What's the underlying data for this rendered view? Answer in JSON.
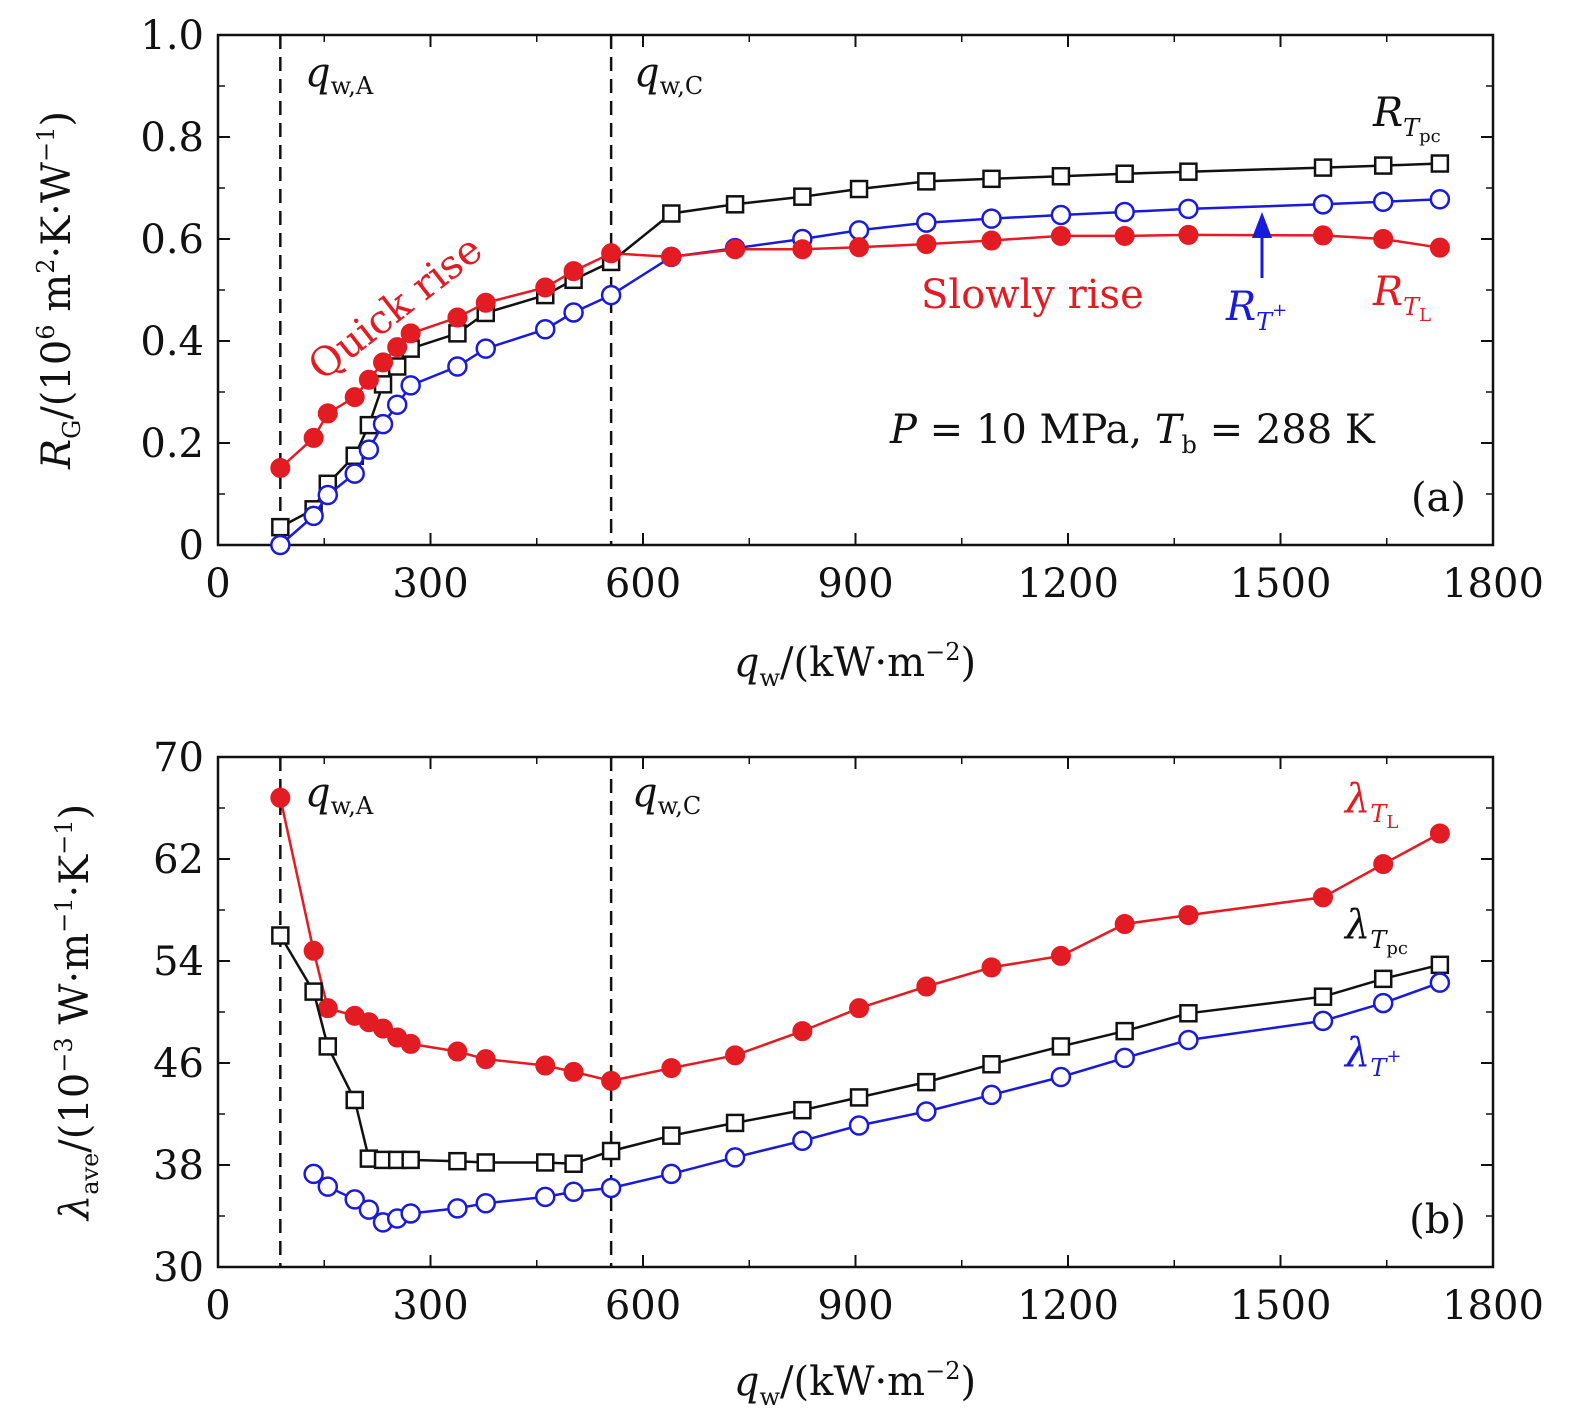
{
  "chart_data": [
    {
      "id": "a",
      "type": "line",
      "panel_label": "(a)",
      "xlim": [
        0,
        1800
      ],
      "ylim": [
        0,
        1.0
      ],
      "xticks": [
        "0",
        "300",
        "600",
        "900",
        "1200",
        "1500",
        "1800"
      ],
      "yticks": [
        "0",
        "0.2",
        "0.4",
        "0.6",
        "0.8",
        "1.0"
      ],
      "xlabel": {
        "main": "q",
        "sub": "w",
        "rest": "/(kW·m",
        "sup": "−2",
        "close": ")"
      },
      "ylabel": {
        "main": "R",
        "sub": "G",
        "rest1": "/(10",
        "sup1": "6",
        "rest2": " m",
        "sup2": "2",
        "rest3": "·K·W",
        "sup3": "−1",
        "close": ")"
      },
      "condition": {
        "p": "P",
        "p_eq": " = 10 MPa, ",
        "t": "T",
        "t_sub": "b",
        "t_eq": " = 288 K"
      },
      "vlines": [
        {
          "x": 88,
          "label": "q",
          "label_sub": "w,A"
        },
        {
          "x": 555,
          "label": "q",
          "label_sub": "w,C"
        }
      ],
      "annotations": {
        "quick_rise": "Quick rise",
        "slowly_rise": "Slowly rise"
      },
      "series": [
        {
          "name": "R_Tpc",
          "legend": "R",
          "legend_sub": "T",
          "legend_subsub": "pc",
          "color": "#111111",
          "marker": "open-square",
          "x": [
            88,
            135,
            155,
            193,
            213,
            233,
            253,
            272,
            338,
            378,
            462,
            502,
            555,
            640,
            730,
            825,
            905,
            1000,
            1092,
            1190,
            1280,
            1370,
            1560,
            1645,
            1725
          ],
          "y": [
            0.035,
            0.07,
            0.12,
            0.175,
            0.235,
            0.315,
            0.35,
            0.385,
            0.415,
            0.455,
            0.49,
            0.52,
            0.555,
            0.65,
            0.668,
            0.683,
            0.698,
            0.713,
            0.718,
            0.723,
            0.728,
            0.732,
            0.74,
            0.744,
            0.748
          ]
        },
        {
          "name": "R_T+",
          "legend": "R",
          "legend_sub": "T",
          "legend_sup": "+",
          "color": "#1a1adb",
          "marker": "open-circle",
          "x": [
            88,
            135,
            155,
            193,
            213,
            233,
            253,
            272,
            338,
            378,
            462,
            502,
            555,
            640,
            730,
            825,
            905,
            1000,
            1092,
            1190,
            1280,
            1370,
            1560,
            1645,
            1725
          ],
          "y": [
            0.0,
            0.057,
            0.098,
            0.14,
            0.187,
            0.237,
            0.275,
            0.313,
            0.35,
            0.385,
            0.423,
            0.456,
            0.49,
            0.565,
            0.582,
            0.6,
            0.617,
            0.632,
            0.64,
            0.647,
            0.653,
            0.659,
            0.668,
            0.673,
            0.678
          ]
        },
        {
          "name": "R_TL",
          "legend": "R",
          "legend_sub": "T",
          "legend_subsub": "L",
          "color": "#e31b23",
          "marker": "filled-circle",
          "x": [
            88,
            135,
            155,
            193,
            213,
            233,
            253,
            272,
            338,
            378,
            462,
            502,
            555,
            640,
            730,
            825,
            905,
            1000,
            1092,
            1190,
            1280,
            1370,
            1560,
            1645,
            1725
          ],
          "y": [
            0.151,
            0.21,
            0.258,
            0.29,
            0.324,
            0.358,
            0.388,
            0.415,
            0.446,
            0.475,
            0.505,
            0.537,
            0.572,
            0.565,
            0.58,
            0.58,
            0.584,
            0.59,
            0.597,
            0.606,
            0.606,
            0.608,
            0.607,
            0.6,
            0.583
          ]
        }
      ]
    },
    {
      "id": "b",
      "type": "line",
      "panel_label": "(b)",
      "xlim": [
        0,
        1800
      ],
      "ylim": [
        30,
        70
      ],
      "xticks": [
        "0",
        "300",
        "600",
        "900",
        "1200",
        "1500",
        "1800"
      ],
      "yticks": [
        "30",
        "38",
        "46",
        "54",
        "62",
        "70"
      ],
      "xlabel": {
        "main": "q",
        "sub": "w",
        "rest": "/(kW·m",
        "sup": "−2",
        "close": ")"
      },
      "ylabel": {
        "main": "λ",
        "sub": "ave",
        "rest1": "/(10",
        "sup1": "−3",
        "rest2": " W·m",
        "sup2": "−1",
        "rest3": "·K",
        "sup3": "−1",
        "close": ")"
      },
      "vlines": [
        {
          "x": 88,
          "label": "q",
          "label_sub": "w,A"
        },
        {
          "x": 555,
          "label": "q",
          "label_sub": "w,C"
        }
      ],
      "series": [
        {
          "name": "λ_TL",
          "legend": "λ",
          "legend_sub": "T",
          "legend_subsub": "L",
          "color": "#e31b23",
          "marker": "filled-circle",
          "x": [
            88,
            135,
            155,
            193,
            213,
            233,
            253,
            272,
            338,
            378,
            462,
            502,
            555,
            640,
            730,
            825,
            905,
            1000,
            1092,
            1190,
            1280,
            1370,
            1560,
            1645,
            1725
          ],
          "y": [
            66.8,
            54.8,
            50.3,
            49.7,
            49.2,
            48.7,
            48.0,
            47.5,
            46.9,
            46.3,
            45.8,
            45.3,
            44.6,
            45.6,
            46.6,
            48.5,
            50.3,
            52.0,
            53.5,
            54.4,
            56.9,
            57.6,
            59.0,
            61.6,
            64.0
          ]
        },
        {
          "name": "λ_Tpc",
          "legend": "λ",
          "legend_sub": "T",
          "legend_subsub": "pc",
          "color": "#111111",
          "marker": "open-square",
          "x": [
            88,
            135,
            155,
            193,
            213,
            233,
            253,
            272,
            338,
            378,
            462,
            502,
            555,
            640,
            730,
            825,
            905,
            1000,
            1092,
            1190,
            1280,
            1370,
            1560,
            1645,
            1725
          ],
          "y": [
            56.0,
            51.6,
            47.3,
            43.1,
            38.5,
            38.4,
            38.4,
            38.4,
            38.3,
            38.2,
            38.2,
            38.1,
            39.1,
            40.3,
            41.3,
            42.3,
            43.3,
            44.5,
            45.9,
            47.3,
            48.5,
            49.9,
            51.2,
            52.6,
            53.7
          ]
        },
        {
          "name": "λ_T+",
          "legend": "λ",
          "legend_sub": "T",
          "legend_sup": "+",
          "color": "#1a1adb",
          "marker": "open-circle",
          "x": [
            135,
            155,
            193,
            213,
            233,
            253,
            272,
            338,
            378,
            462,
            502,
            555,
            640,
            730,
            825,
            905,
            1000,
            1092,
            1190,
            1280,
            1370,
            1560,
            1645,
            1725
          ],
          "y": [
            37.3,
            36.3,
            35.3,
            34.5,
            33.5,
            33.8,
            34.2,
            34.6,
            35.0,
            35.5,
            35.9,
            36.2,
            37.3,
            38.6,
            39.9,
            41.1,
            42.2,
            43.5,
            44.9,
            46.4,
            47.8,
            49.3,
            50.7,
            52.3
          ]
        }
      ]
    }
  ]
}
